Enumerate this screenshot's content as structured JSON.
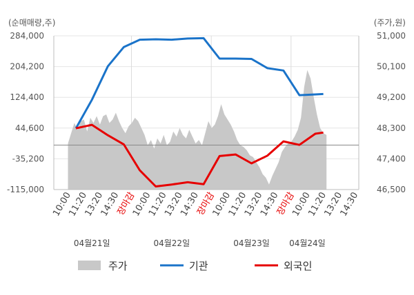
{
  "chart_data": {
    "type": "line",
    "left_axis": {
      "unit": "(순매매량,주)",
      "ticks": [
        "284,000",
        "204,200",
        "124,400",
        "44,600",
        "-35,200",
        "-115,000"
      ],
      "range": [
        -115000,
        284000
      ]
    },
    "right_axis": {
      "unit": "(주가,원)",
      "ticks": [
        "51,000",
        "50,100",
        "49,200",
        "48,300",
        "47,400",
        "46,500"
      ],
      "range": [
        46500,
        51000
      ]
    },
    "x_ticks": [
      {
        "label": "10:00",
        "close": false
      },
      {
        "label": "11:20",
        "close": false
      },
      {
        "label": "13:20",
        "close": false
      },
      {
        "label": "14:30",
        "close": false
      },
      {
        "label": "장마감",
        "close": true
      },
      {
        "label": "10:00",
        "close": false
      },
      {
        "label": "11:20",
        "close": false
      },
      {
        "label": "13:20",
        "close": false
      },
      {
        "label": "14:30",
        "close": false
      },
      {
        "label": "장마감",
        "close": true
      },
      {
        "label": "10:00",
        "close": false
      },
      {
        "label": "11:20",
        "close": false
      },
      {
        "label": "13:20",
        "close": false
      },
      {
        "label": "14:30",
        "close": false
      },
      {
        "label": "장마감",
        "close": true
      },
      {
        "label": "10:00",
        "close": false
      },
      {
        "label": "11:20",
        "close": false
      },
      {
        "label": "13:20",
        "close": false
      },
      {
        "label": "14:30",
        "close": false
      }
    ],
    "dates": [
      {
        "label": "04월21일",
        "tick_index": 1.5
      },
      {
        "label": "04월22일",
        "tick_index": 6.5
      },
      {
        "label": "04월23일",
        "tick_index": 11.5
      },
      {
        "label": "04월24일",
        "tick_index": 15
      }
    ],
    "grid": true,
    "legend_position": "bottom",
    "series": [
      {
        "name": "주가",
        "axis": "right",
        "style": "area",
        "color": "#c8c8c8",
        "x": [
          0,
          0.2,
          0.4,
          0.6,
          0.8,
          1.0,
          1.2,
          1.4,
          1.6,
          1.8,
          2.0,
          2.2,
          2.4,
          2.6,
          2.8,
          3.0,
          3.2,
          3.4,
          3.6,
          3.8,
          4.0,
          4.2,
          4.4,
          4.6,
          4.8,
          5.0,
          5.2,
          5.4,
          5.6,
          5.8,
          6.0,
          6.2,
          6.4,
          6.6,
          6.8,
          7.0,
          7.2,
          7.4,
          7.6,
          7.8,
          8.0,
          8.2,
          8.4,
          8.6,
          8.8,
          9.0,
          9.2,
          9.4,
          9.6,
          9.8,
          10.0,
          10.2,
          10.4,
          10.6,
          10.8,
          11.0,
          11.2,
          11.4,
          11.6,
          11.8,
          12.0,
          12.2,
          12.4,
          12.6,
          12.8,
          13.0,
          13.2,
          13.4,
          13.6,
          13.8,
          14.0,
          14.2,
          14.4,
          14.6,
          14.8,
          15.0,
          15.2,
          15.4,
          15.6,
          15.8,
          16.0,
          16.2
        ],
        "values": [
          47850,
          48150,
          48450,
          48250,
          48500,
          48550,
          48200,
          48600,
          48450,
          48650,
          48400,
          48650,
          48700,
          48450,
          48550,
          48750,
          48500,
          48300,
          48150,
          48350,
          48450,
          48600,
          48500,
          48300,
          48100,
          47800,
          47950,
          47700,
          48000,
          47850,
          48100,
          47800,
          47900,
          48200,
          48050,
          48300,
          48100,
          48000,
          48250,
          48050,
          47850,
          47950,
          47800,
          48150,
          48500,
          48300,
          48400,
          48650,
          49000,
          48700,
          48550,
          48400,
          48200,
          47950,
          47800,
          47750,
          47650,
          47500,
          47450,
          47300,
          47150,
          46950,
          46850,
          46650,
          46900,
          47100,
          47300,
          47600,
          47750,
          47850,
          47900,
          48050,
          48250,
          48600,
          49500,
          50000,
          49750,
          49200,
          48700,
          48300,
          48150,
          48100
        ]
      },
      {
        "name": "기관",
        "axis": "left",
        "style": "line",
        "color": "#1a73c9",
        "x": [
          0.5,
          1.5,
          2.5,
          3.5,
          4.5,
          5.5,
          6.5,
          7.5,
          8.5,
          9.5,
          10.5,
          11.5,
          12.5,
          13.5,
          14.5,
          15.5,
          16.0
        ],
        "values": [
          44000,
          118000,
          205000,
          255000,
          274000,
          275000,
          274000,
          277000,
          278000,
          225000,
          225000,
          224000,
          200000,
          194000,
          130000,
          132000,
          133000
        ]
      },
      {
        "name": "외국인",
        "axis": "left",
        "style": "line",
        "color": "#e60000",
        "x": [
          0.5,
          1.5,
          2.5,
          3.5,
          4.5,
          5.5,
          6.5,
          7.5,
          8.5,
          9.5,
          10.5,
          11.5,
          12.5,
          13.5,
          14.5,
          15.5,
          16.0
        ],
        "values": [
          44000,
          53000,
          26000,
          2000,
          -65000,
          -107000,
          -102000,
          -96000,
          -101000,
          -28000,
          -24000,
          -47000,
          -27000,
          10000,
          1000,
          30000,
          33000
        ]
      }
    ]
  }
}
